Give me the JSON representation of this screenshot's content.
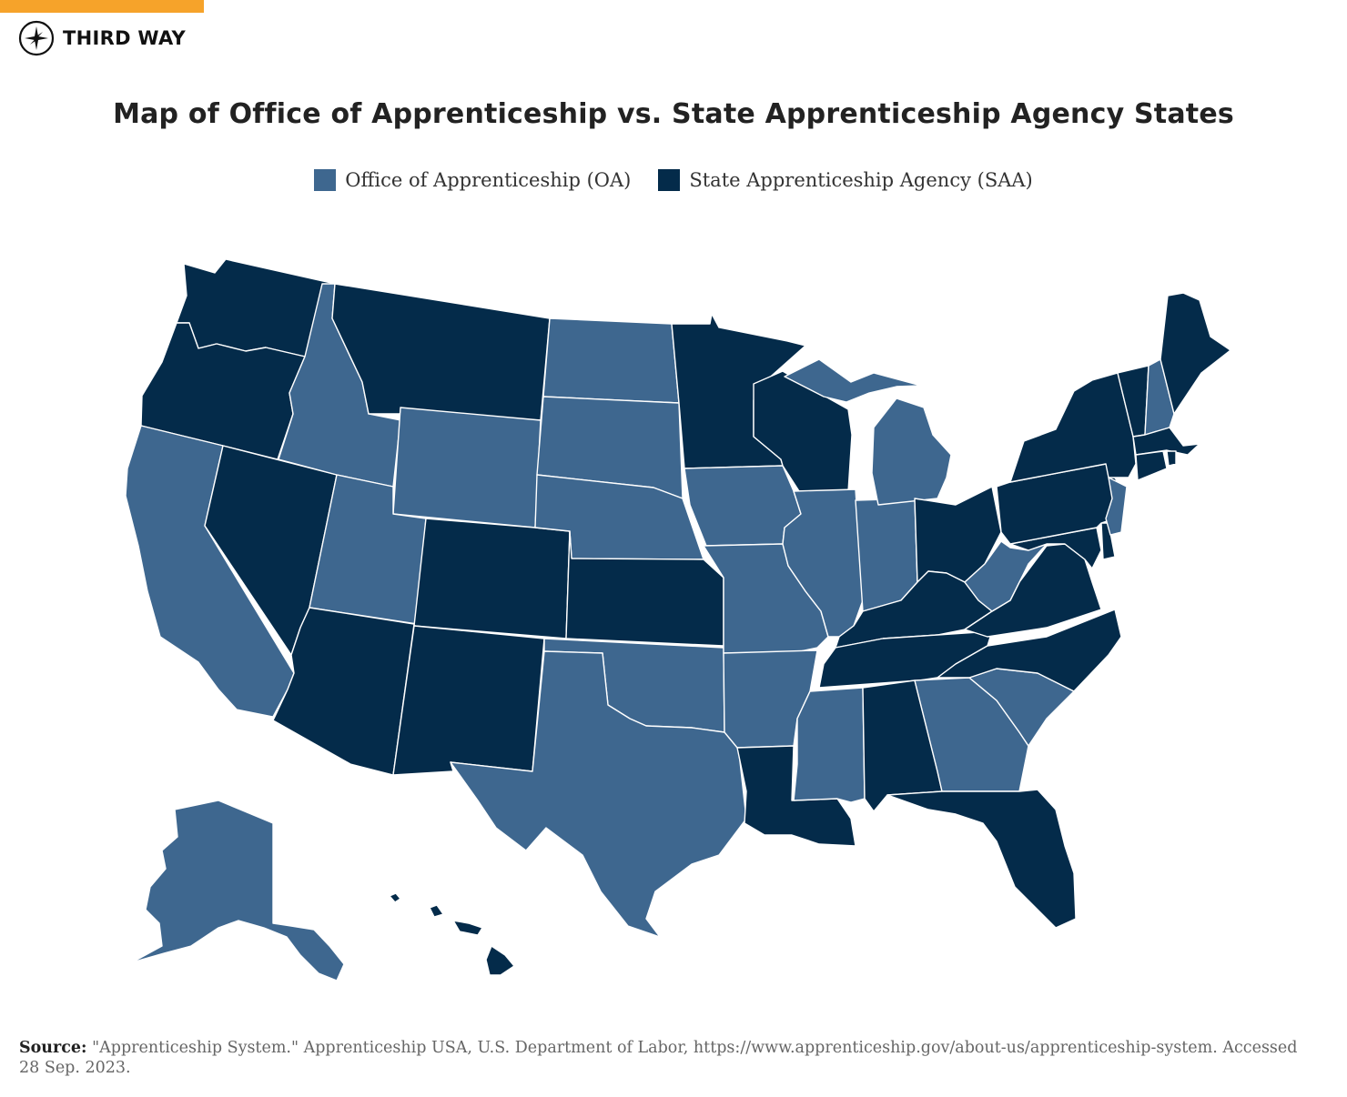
{
  "brand": {
    "name": "THIRD WAY"
  },
  "title": "Map of Office of Apprenticeship vs. State Apprenticeship Agency States",
  "legend": [
    {
      "label": "Office of Apprenticeship (OA)",
      "color": "#3e678f"
    },
    {
      "label": "State Apprenticeship Agency (SAA)",
      "color": "#042b4a"
    }
  ],
  "colors": {
    "accent": "#f6a32a",
    "oa": "#3e678f",
    "saa": "#042b4a"
  },
  "map_data": {
    "OA": [
      "ID",
      "ND",
      "SD",
      "WY",
      "NE",
      "UT",
      "CA",
      "IA",
      "MO",
      "IL",
      "IN",
      "MI",
      "OK",
      "TX",
      "AR",
      "MS",
      "GA",
      "SC",
      "WV",
      "NJ",
      "NH",
      "AK"
    ],
    "SAA": [
      "WA",
      "OR",
      "MT",
      "NV",
      "CO",
      "AZ",
      "NM",
      "KS",
      "MN",
      "WI",
      "LA",
      "AL",
      "FL",
      "TN",
      "KY",
      "OH",
      "NC",
      "VA",
      "PA",
      "NY",
      "VT",
      "ME",
      "MA",
      "CT",
      "RI",
      "DE",
      "MD",
      "HI"
    ]
  },
  "source": {
    "label": "Source:",
    "text": "\"Apprenticeship System.\" Apprenticeship USA, U.S. Department of Labor, https://www.apprenticeship.gov/about-us/apprenticeship-system. Accessed 28 Sep. 2023."
  }
}
